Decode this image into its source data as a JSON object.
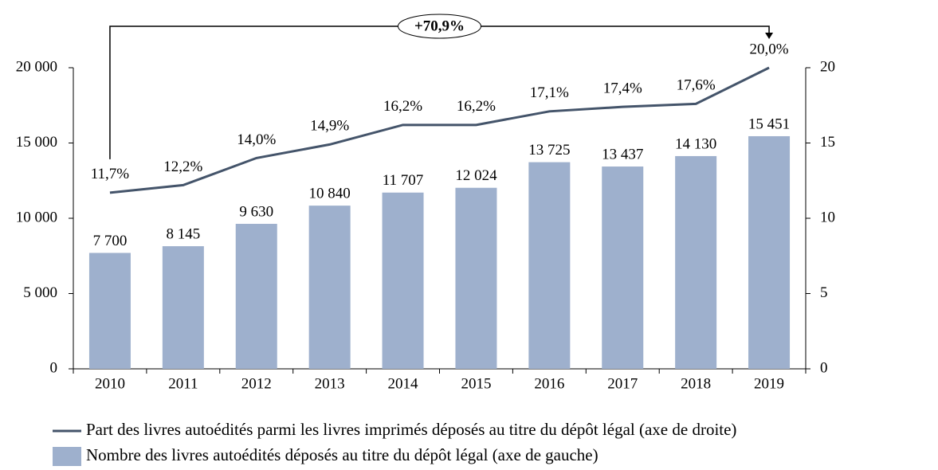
{
  "chart_data": {
    "type": "bar",
    "annotation": "+70,9%",
    "categories": [
      "2010",
      "2011",
      "2012",
      "2013",
      "2014",
      "2015",
      "2016",
      "2017",
      "2018",
      "2019"
    ],
    "series": [
      {
        "name": "Nombre des livres autoédités déposés au titre du dépôt légal (axe de gauche)",
        "type": "bar",
        "color": "#9eb0cd",
        "values": [
          7700,
          8145,
          9630,
          10840,
          11707,
          12024,
          13725,
          13437,
          14130,
          15451
        ],
        "value_labels": [
          "7 700",
          "8 145",
          "9 630",
          "10 840",
          "11 707",
          "12 024",
          "13 725",
          "13 437",
          "14 130",
          "15 451"
        ]
      },
      {
        "name": "Part des livres autoédités parmi les livres imprimés déposés au titre du dépôt légal (axe de droite)",
        "type": "line",
        "axis": "y2",
        "color": "#44546a",
        "values": [
          11.7,
          12.2,
          14.0,
          14.9,
          16.2,
          16.2,
          17.1,
          17.4,
          17.6,
          20.0
        ],
        "value_labels": [
          "11,7%",
          "12,2%",
          "14,0%",
          "14,9%",
          "16,2%",
          "16,2%",
          "17,1%",
          "17,4%",
          "17,6%",
          "20,0%"
        ]
      }
    ],
    "ylim": [
      0,
      20000
    ],
    "yticks": [
      0,
      {
        "value": 5000,
        "label": "5 000"
      },
      {
        "value": 10000,
        "label": "10 000"
      },
      {
        "value": 15000,
        "label": "15 000"
      },
      {
        "value": 20000,
        "label": "20 000"
      }
    ],
    "y2lim": [
      0,
      20
    ],
    "y2ticks": [
      0,
      5,
      10,
      15,
      20
    ],
    "legend": "bottom"
  }
}
